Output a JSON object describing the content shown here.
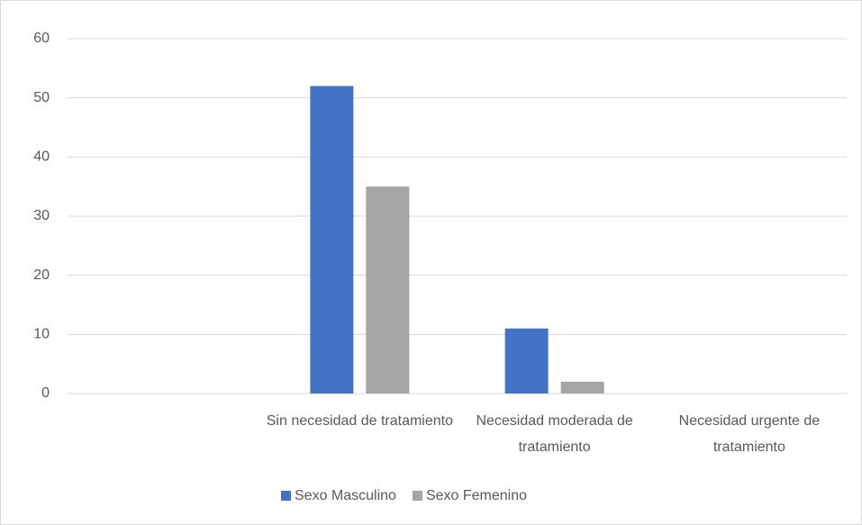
{
  "chart_data": {
    "type": "bar",
    "categories": [
      null,
      "Sin necesidad de tratamiento",
      "Necesidad moderada de tratamiento",
      "Necesidad urgente de tratamiento"
    ],
    "series": [
      {
        "name": "Sexo Masculino",
        "color": "#4472c4",
        "values": [
          null,
          52,
          11,
          0
        ]
      },
      {
        "name": "Sexo Femenino",
        "color": "#a5a5a5",
        "values": [
          null,
          35,
          2,
          0
        ]
      }
    ],
    "ylim": [
      0,
      60
    ],
    "yticks": [
      0,
      10,
      20,
      30,
      40,
      50,
      60
    ],
    "grid": true,
    "legend": "bottom"
  }
}
